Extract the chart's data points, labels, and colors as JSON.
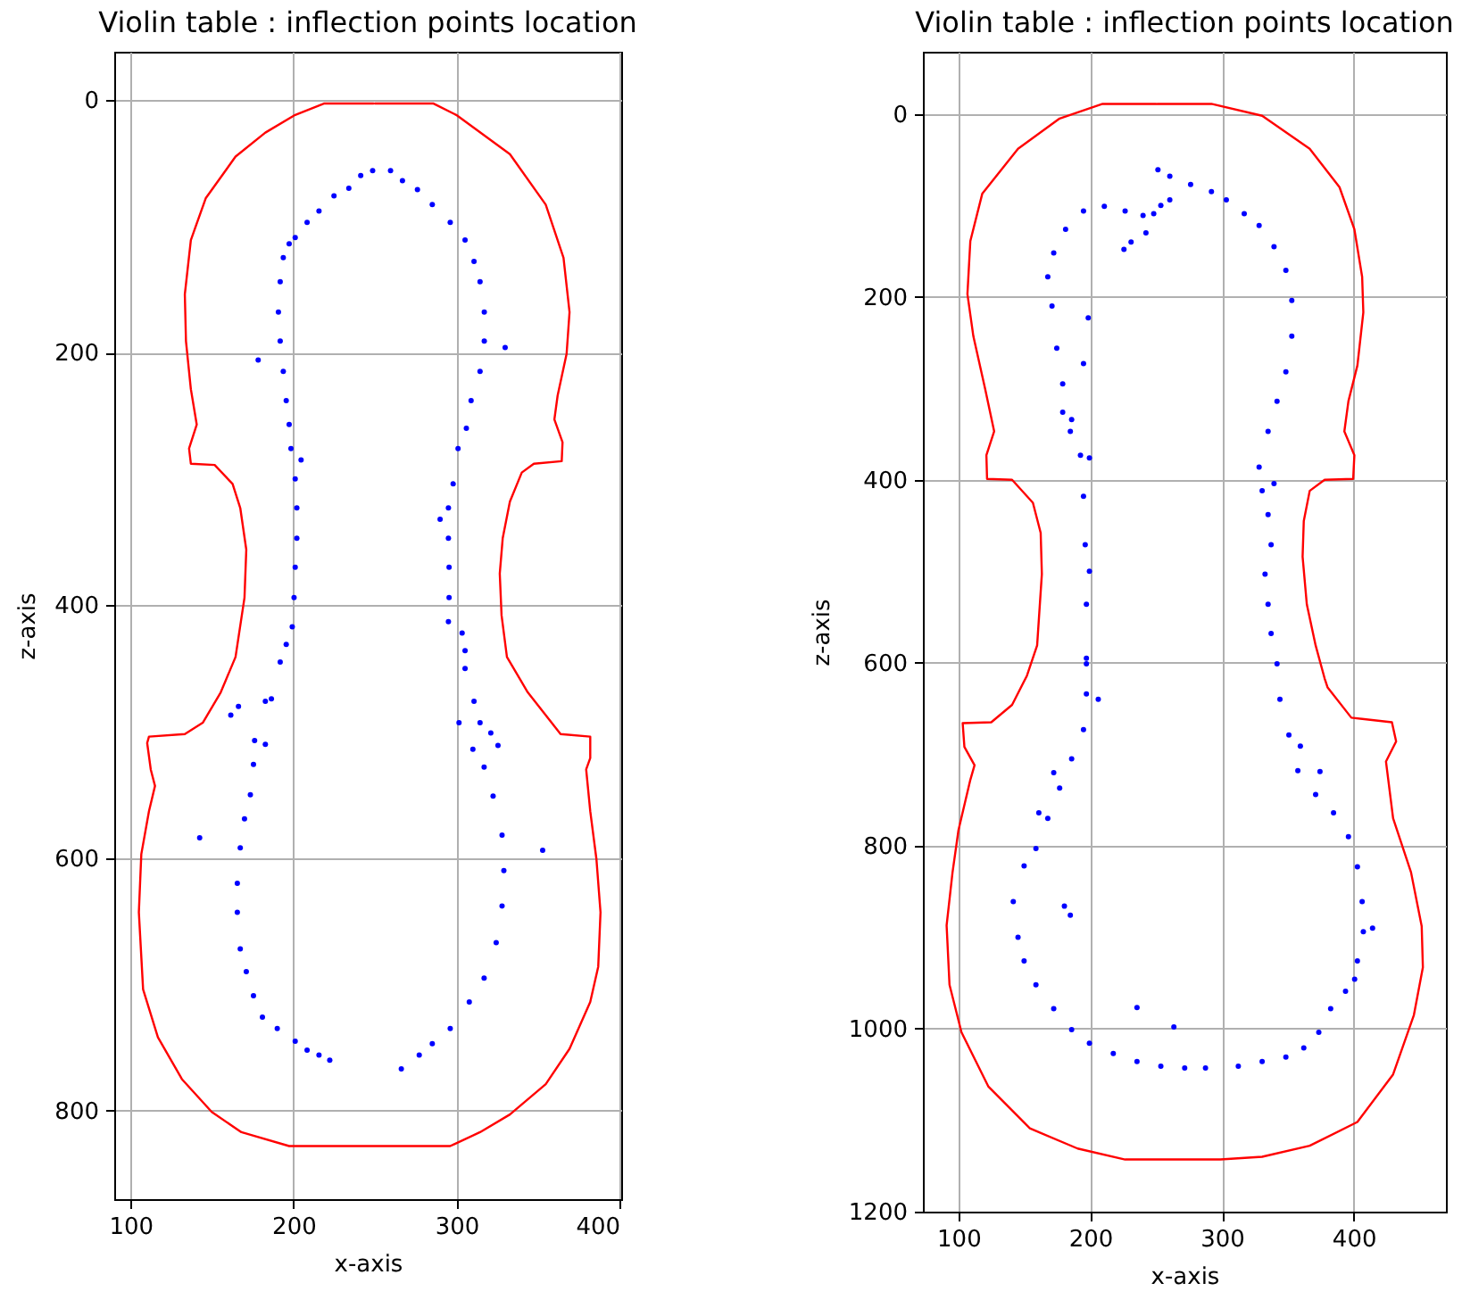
{
  "chart_data": [
    {
      "type": "line",
      "title": "Violin table : inflection points location",
      "xlabel": "x-axis",
      "ylabel": "z-axis",
      "xlim": [
        90,
        401
      ],
      "ylim": [
        870,
        -38
      ],
      "xticks": [
        100,
        200,
        300,
        400
      ],
      "yticks": [
        0,
        200,
        400,
        600,
        800
      ],
      "grid": true,
      "series": [
        {
          "color": "#ff0000",
          "x": [
            250,
            285.9,
            299.8,
            332.7,
            354.7,
            365.6,
            369.3,
            367.5,
            362,
            360,
            365,
            364.5,
            347.4,
            340,
            332.7,
            328.3,
            326.5,
            327.6,
            330.9,
            343.7,
            363.8,
            382,
            382,
            379.5,
            382,
            385.8,
            388.3,
            386.9,
            382,
            369.3,
            354.7,
            332.7,
            314.4,
            296.1,
            197.3,
            168,
            149.8,
            131.5,
            116.8,
            107.7,
            105.1,
            106.6,
            111.3,
            115,
            112.4,
            110.2,
            111.3,
            133.3,
            144.3,
            155.3,
            164.4,
            169.9,
            171,
            167.3,
            162.6,
            151.6,
            137,
            135.9,
            140.6,
            137,
            134,
            133.3,
            137,
            146.1,
            164.4,
            182.7,
            201,
            218.6,
            249
          ],
          "values": [
            3,
            3,
            12,
            43,
            83,
            125,
            168,
            201,
            234,
            253,
            271,
            286,
            288,
            295,
            318,
            347,
            375,
            408,
            441,
            469,
            502,
            504,
            521,
            530,
            563,
            601,
            643,
            686,
            714,
            751,
            779,
            803,
            817,
            828,
            828,
            817,
            801,
            775,
            742,
            704,
            643,
            597,
            563,
            543,
            530,
            509,
            504,
            502,
            493,
            469,
            441,
            394,
            356,
            323,
            304,
            289,
            288,
            276,
            257,
            229,
            191,
            154,
            111,
            78,
            45,
            26,
            12,
            3,
            3
          ]
        },
        {
          "type": "scatter",
          "color": "#0000ff",
          "marker": "circle",
          "x": [
            197.3,
            193.7,
            191.8,
            190.7,
            191.8,
            193.7,
            195.5,
            197.3,
            198.4,
            201,
            202,
            202,
            201,
            200.3,
            199.2,
            195.5,
            191.8,
            186.4,
            182.7,
            176.1,
            175.4,
            173.5,
            169.9,
            167.3,
            165.5,
            165.5,
            167.3,
            171,
            175.4,
            180.9,
            190,
            201,
            208.3,
            215.6,
            222.2,
            201,
            208.3,
            215.6,
            224.8,
            233.9,
            241.2,
            248.5,
            259.5,
            266.8,
            276,
            285.1,
            296.1,
            305.2,
            310.7,
            314.4,
            317,
            317,
            314.4,
            308.9,
            306,
            300.9,
            297.9,
            295,
            295,
            295.4,
            295.4,
            295,
            303.4,
            305.2,
            305.2,
            301.5,
            310.7,
            314.4,
            321,
            310,
            316.9,
            322.4,
            327.9,
            329,
            327.9,
            324.3,
            316.9,
            307.8,
            296.1,
            285.1,
            277.1,
            266.1,
            178.3,
            329.8,
            204.6,
            289.9,
            142.4,
            352.8,
            161.5,
            166.2,
            182.7,
            325.4
          ],
          "values": [
            114,
            125,
            144,
            168,
            191,
            215,
            238,
            257,
            276,
            300,
            323,
            347,
            370,
            394,
            417,
            431,
            445,
            474,
            476,
            507,
            526,
            550,
            569,
            592,
            620,
            643,
            672,
            690,
            709,
            726,
            735,
            745,
            752,
            756,
            760,
            109,
            97,
            88,
            76,
            70,
            60,
            56,
            56,
            64,
            71,
            83,
            97,
            111,
            128,
            144,
            168,
            191,
            215,
            238,
            260,
            276,
            304,
            323,
            347,
            370,
            394,
            413,
            422,
            436,
            450,
            493,
            476,
            493,
            501,
            514,
            528,
            551,
            582,
            610,
            638,
            667,
            695,
            714,
            735,
            747,
            756,
            767,
            206,
            196,
            285,
            332,
            584,
            594,
            487,
            480,
            510,
            511
          ]
        }
      ]
    },
    {
      "type": "line",
      "title": "Violin table : inflection points location",
      "xlabel": "x-axis",
      "ylabel": "z-axis",
      "xlim": [
        73,
        470
      ],
      "ylim": [
        1200,
        -68
      ],
      "xticks": [
        100,
        200,
        300,
        400
      ],
      "yticks": [
        0,
        200,
        400,
        600,
        800,
        1000,
        1200
      ],
      "grid": true,
      "series": [
        {
          "color": "#ff0000",
          "x": [
            251,
            292,
            330.5,
            366.6,
            389.2,
            400.5,
            406.4,
            407.3,
            402.8,
            396,
            392.9,
            400.5,
            399.6,
            377.9,
            366.6,
            362.1,
            361.2,
            364.4,
            371.1,
            377.9,
            380.2,
            398.2,
            429,
            432.2,
            424.5,
            429.9,
            443.5,
            451.6,
            452.5,
            445.7,
            429.9,
            402.8,
            366.6,
            330.5,
            298.8,
            226.5,
            190.4,
            154.2,
            122.6,
            102.3,
            93.2,
            91,
            95.5,
            100,
            109,
            112.2,
            104.5,
            103.2,
            124.9,
            140.7,
            152,
            159.7,
            163.3,
            162.4,
            156.5,
            140.7,
            121.7,
            121.2,
            127.1,
            120.3,
            111.3,
            106.8,
            109,
            118.1,
            145.2,
            176.8,
            209.4,
            250
          ],
          "values": [
            -11,
            -11,
            2,
            38,
            80,
            126,
            178,
            217,
            275,
            314,
            347,
            373,
            399,
            400,
            412,
            445,
            484,
            536,
            581,
            617,
            627,
            660,
            665,
            686,
            708,
            770,
            829,
            888,
            933,
            985,
            1050,
            1102,
            1128,
            1140,
            1143,
            1143,
            1131,
            1109,
            1063,
            1004,
            952,
            887,
            829,
            783,
            728,
            712,
            692,
            666,
            665,
            646,
            614,
            581,
            503,
            458,
            425,
            400,
            399,
            373,
            347,
            301,
            243,
            197,
            139,
            87,
            38,
            5,
            -11,
            -11
          ]
        },
        {
          "type": "scatter",
          "color": "#0000ff",
          "marker": "circle",
          "x": [
            251.4,
            260.4,
            276.2,
            292,
            303.3,
            316.9,
            328.2,
            339.5,
            348.5,
            353,
            353,
            348.5,
            341.8,
            335,
            328.2,
            330.5,
            335,
            337.3,
            332.7,
            335,
            337.3,
            341.8,
            344,
            350.8,
            357.6,
            371.1,
            384.7,
            396,
            402.8,
            406.4,
            407.3,
            402.8,
            393.8,
            382.5,
            373.5,
            362.1,
            348.5,
            330.5,
            312.4,
            287.5,
            271.7,
            253.6,
            235.5,
            217.5,
            199.4,
            185.9,
            172.3,
            158.8,
            149.8,
            145.2,
            141.6,
            149.8,
            158.8,
            167.8,
            176.8,
            185.9,
            194.9,
            197.1,
            197.1,
            197.1,
            197.1,
            196.2,
            194.9,
            192.6,
            185.9,
            179.1,
            174.6,
            171,
            167.8,
            172.3,
            181.3,
            194.9,
            210.7,
            226.5,
            240.1,
            248.2,
            253.6,
            260.4,
            242.3,
            231,
            225.6,
            198.5,
            194.9,
            179.1,
            184.9,
            199.4,
            339.5,
            199.4,
            206.1,
            172.3,
            161,
            180.4,
            184.9,
            235.5,
            263.5,
            374.4,
            359.5,
            414.3,
            400.7
          ],
          "values": [
            61,
            68,
            77,
            85,
            94,
            109,
            122,
            145,
            171,
            204,
            243,
            282,
            314,
            347,
            386,
            412,
            438,
            471,
            503,
            536,
            568,
            601,
            640,
            679,
            718,
            744,
            764,
            790,
            823,
            861,
            894,
            926,
            959,
            978,
            1004,
            1021,
            1031,
            1036,
            1041,
            1043,
            1043,
            1041,
            1036,
            1027,
            1016,
            1001,
            978,
            952,
            926,
            900,
            861,
            822,
            803,
            770,
            737,
            705,
            673,
            634,
            595,
            601,
            536,
            471,
            418,
            373,
            334,
            295,
            256,
            210,
            178,
            152,
            126,
            106,
            101,
            106,
            111,
            109,
            100,
            94,
            130,
            140,
            148,
            223,
            273,
            326,
            347,
            376,
            404,
            500,
            640,
            720,
            764,
            866,
            876,
            977,
            998,
            719,
            691,
            890,
            946
          ]
        }
      ]
    }
  ]
}
